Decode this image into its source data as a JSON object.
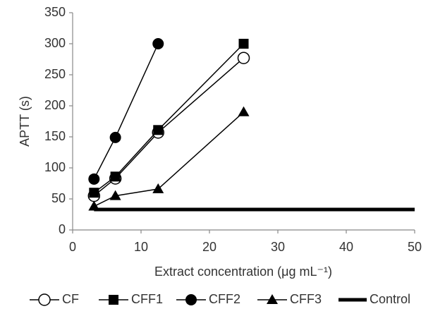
{
  "chart_data": {
    "type": "line",
    "xlabel": "Extract concentration (μg mL⁻¹)",
    "ylabel": "APTT (s)",
    "xlim": [
      0,
      50
    ],
    "xticks": [
      0,
      10,
      20,
      30,
      40,
      50
    ],
    "ylim": [
      0,
      350
    ],
    "yticks": [
      0,
      50,
      100,
      150,
      200,
      250,
      300,
      350
    ],
    "grid": false,
    "legend": "bottom",
    "series": [
      {
        "name": "CF",
        "color": "#000000",
        "marker": "circle-open",
        "x": [
          3.125,
          6.25,
          12.5,
          25
        ],
        "values": [
          55,
          83,
          157,
          277
        ]
      },
      {
        "name": "CFF1",
        "color": "#000000",
        "marker": "square",
        "x": [
          3.125,
          6.25,
          12.5,
          25
        ],
        "values": [
          60,
          86,
          161,
          300
        ]
      },
      {
        "name": "CFF2",
        "color": "#000000",
        "marker": "circle",
        "x": [
          3.125,
          6.25,
          12.5
        ],
        "values": [
          82,
          149,
          300
        ]
      },
      {
        "name": "CFF3",
        "color": "#000000",
        "marker": "triangle",
        "x": [
          3.125,
          6.25,
          12.5,
          25
        ],
        "values": [
          38,
          55,
          66,
          190
        ]
      },
      {
        "name": "Control",
        "color": "#000000",
        "marker": "none",
        "x": [
          3.125,
          50
        ],
        "values": [
          33,
          33
        ]
      }
    ]
  }
}
